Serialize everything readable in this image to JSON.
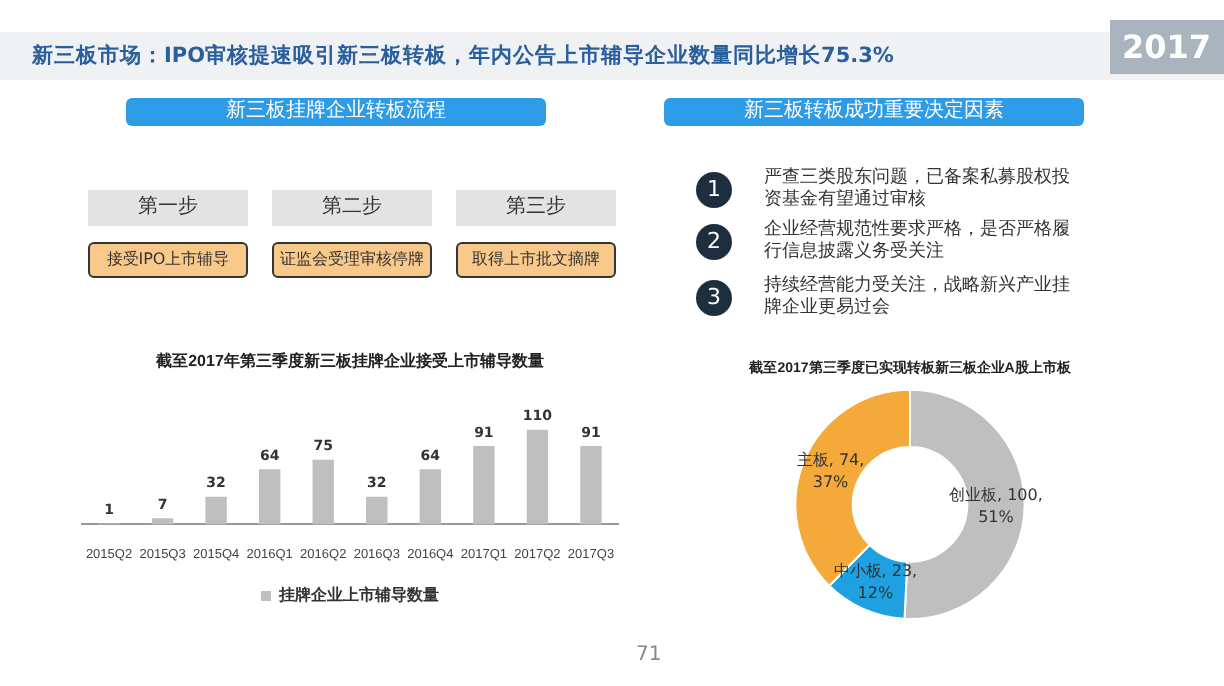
{
  "chart_data": [
    {
      "type": "other",
      "title": "新三板市场：IPO审核提速吸引新三板转板，年内公告上市辅导企业数量同比增长75.3%",
      "annotations": [
        "2017",
        "新三板挂牌企业转板流程",
        "第一步",
        "第二步",
        "第三步",
        "接受IPO上市辅导",
        "证监会受理审核停牌",
        "取得上市批文摘牌",
        "新三板转板成功重要决定因素",
        "1",
        "严查三类股东问题，已备案私募股权投资基金有望通过审核",
        "2",
        "企业经营规范性要求严格，是否严格履行信息披露义务受关注",
        "3",
        "持续经营能力受关注，战略新兴产业挂牌企业更易过会",
        "71"
      ]
    },
    {
      "type": "bar",
      "title": "截至2017年第三季度新三板挂牌企业接受上市辅导数量",
      "categories": [
        "2015Q2",
        "2015Q3",
        "2015Q4",
        "2016Q1",
        "2016Q2",
        "2016Q3",
        "2016Q4",
        "2017Q1",
        "2017Q2",
        "2017Q3"
      ],
      "series": [
        {
          "name": "挂牌企业上市辅导数量",
          "color": "#bfbfbf",
          "values": [
            1,
            7,
            32,
            64,
            75,
            32,
            64,
            91,
            110,
            91
          ]
        }
      ],
      "data_labels": true,
      "legend": "bottom",
      "grid": false
    },
    {
      "type": "donut",
      "title": "截至2017第三季度已实现转板新三板企业A股上市板",
      "categories": [
        "创业板",
        "中小板",
        "主板"
      ],
      "values": [
        100,
        23,
        74
      ],
      "colors": [
        "#bfbfbf",
        "#1fa0e0",
        "#f5a93a"
      ],
      "value_labels": [
        "100, 51%",
        "23, 12%",
        "74, 37%"
      ],
      "legend": false
    }
  ]
}
